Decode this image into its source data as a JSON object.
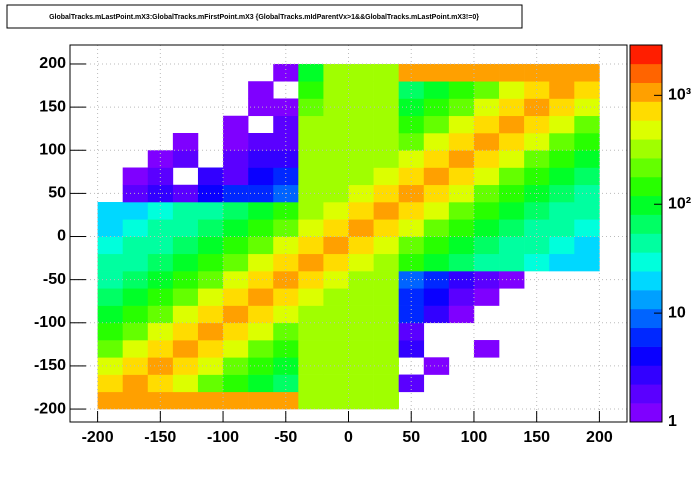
{
  "chart_data": {
    "type": "heatmap",
    "title": "GlobalTracks.mLastPoint.mX3:GlobalTracks.mFirstPoint.mX3 {GlobalTracks.mIdParentVx>1&&GlobalTracks.mLastPoint.mX3!=0}",
    "x_bins": [
      -200,
      -180,
      -160,
      -140,
      -120,
      -100,
      -80,
      -60,
      -40,
      -20,
      0,
      20,
      40,
      60,
      80,
      100,
      120,
      140,
      160,
      180,
      200
    ],
    "y_bins": [
      -200,
      -180,
      -160,
      -140,
      -120,
      -100,
      -80,
      -60,
      -40,
      -20,
      0,
      20,
      40,
      60,
      80,
      100,
      120,
      140,
      160,
      180,
      200
    ],
    "values": [
      [
        1200,
        1200,
        1200,
        1200,
        1200,
        1200,
        1200,
        1200,
        300,
        300,
        300,
        300,
        null,
        null,
        null,
        null,
        null,
        null,
        null,
        null
      ],
      [
        700,
        1200,
        700,
        400,
        250,
        150,
        100,
        70,
        300,
        300,
        300,
        300,
        2,
        null,
        null,
        null,
        null,
        null,
        null,
        null
      ],
      [
        400,
        700,
        1200,
        700,
        400,
        250,
        150,
        100,
        300,
        300,
        300,
        300,
        null,
        1,
        null,
        null,
        null,
        null,
        null,
        null
      ],
      [
        250,
        400,
        700,
        1200,
        700,
        400,
        250,
        150,
        300,
        300,
        300,
        300,
        3,
        null,
        null,
        1,
        null,
        null,
        null,
        null
      ],
      [
        150,
        250,
        400,
        700,
        1200,
        700,
        400,
        250,
        300,
        300,
        300,
        300,
        2,
        null,
        null,
        null,
        null,
        null,
        null,
        null
      ],
      [
        100,
        150,
        250,
        400,
        700,
        1200,
        700,
        400,
        300,
        300,
        300,
        300,
        5,
        3,
        1,
        null,
        null,
        null,
        null,
        null
      ],
      [
        70,
        100,
        150,
        250,
        400,
        700,
        1200,
        700,
        400,
        300,
        300,
        300,
        6,
        4,
        2,
        1,
        null,
        null,
        null,
        null
      ],
      [
        50,
        70,
        100,
        150,
        250,
        400,
        700,
        1200,
        700,
        400,
        300,
        300,
        8,
        5,
        3,
        2,
        1,
        null,
        null,
        null
      ],
      [
        40,
        50,
        70,
        100,
        150,
        250,
        400,
        700,
        1200,
        700,
        400,
        300,
        150,
        100,
        70,
        50,
        40,
        30,
        20,
        20
      ],
      [
        30,
        40,
        50,
        70,
        100,
        150,
        250,
        400,
        700,
        1200,
        700,
        400,
        250,
        150,
        100,
        70,
        50,
        40,
        30,
        20
      ],
      [
        20,
        30,
        40,
        50,
        70,
        100,
        150,
        250,
        400,
        700,
        1200,
        700,
        400,
        250,
        150,
        100,
        70,
        50,
        40,
        30
      ],
      [
        20,
        20,
        30,
        40,
        50,
        70,
        100,
        150,
        300,
        400,
        700,
        1200,
        700,
        400,
        250,
        150,
        100,
        70,
        50,
        40
      ],
      [
        null,
        2,
        3,
        2,
        4,
        5,
        6,
        8,
        300,
        300,
        400,
        700,
        1200,
        700,
        400,
        250,
        150,
        100,
        70,
        50
      ],
      [
        null,
        1,
        2,
        null,
        3,
        2,
        4,
        5,
        300,
        300,
        300,
        400,
        700,
        1200,
        700,
        400,
        250,
        150,
        100,
        70
      ],
      [
        null,
        null,
        1,
        2,
        null,
        2,
        3,
        3,
        300,
        300,
        300,
        300,
        400,
        700,
        1200,
        700,
        400,
        250,
        150,
        100
      ],
      [
        null,
        null,
        null,
        1,
        null,
        1,
        2,
        2,
        300,
        300,
        300,
        300,
        250,
        400,
        700,
        1200,
        700,
        400,
        250,
        150
      ],
      [
        null,
        null,
        null,
        null,
        null,
        1,
        null,
        2,
        300,
        300,
        300,
        300,
        150,
        250,
        400,
        700,
        1200,
        700,
        400,
        250
      ],
      [
        null,
        null,
        null,
        null,
        null,
        null,
        1,
        1,
        200,
        300,
        300,
        300,
        100,
        150,
        250,
        400,
        700,
        1200,
        700,
        400
      ],
      [
        null,
        null,
        null,
        null,
        null,
        null,
        1,
        null,
        150,
        300,
        300,
        300,
        70,
        100,
        150,
        250,
        400,
        700,
        1200,
        700
      ],
      [
        null,
        null,
        null,
        null,
        null,
        null,
        null,
        1,
        100,
        300,
        300,
        300,
        1200,
        1200,
        1200,
        1200,
        1200,
        1200,
        1200,
        1200
      ]
    ],
    "xlim": [
      -222,
      222
    ],
    "ylim": [
      -215,
      222
    ],
    "xticks": [
      -200,
      -150,
      -100,
      -50,
      0,
      50,
      100,
      150,
      200
    ],
    "yticks": [
      -200,
      -150,
      -100,
      -50,
      0,
      50,
      100,
      150,
      200
    ],
    "zlim": [
      1,
      2900
    ],
    "zlog": true,
    "zticks": [
      1,
      10,
      {
        "value": 100,
        "label": "10²"
      },
      {
        "value": 1000,
        "label": "10³"
      }
    ],
    "grid": true,
    "palette": [
      "#7f00ff",
      "#5a00ff",
      "#3200ff",
      "#0a00ff",
      "#0028ff",
      "#0064ff",
      "#00a0ff",
      "#00d8ff",
      "#00ffdc",
      "#00ffa0",
      "#00ff64",
      "#00ff28",
      "#28ff00",
      "#64ff00",
      "#a0ff00",
      "#dcff00",
      "#ffdc00",
      "#ffa000",
      "#ff6400",
      "#ff1e00"
    ]
  }
}
